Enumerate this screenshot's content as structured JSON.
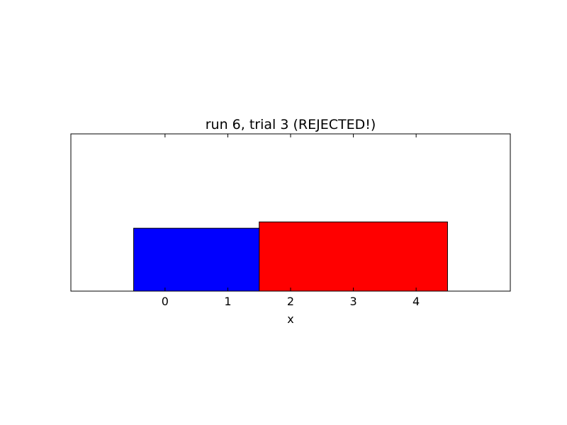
{
  "chart_data": {
    "type": "bar",
    "title": "run 6, trial 3 (REJECTED!)",
    "xlabel": "x",
    "ylabel": "",
    "xlim": [
      -1.5,
      5.5
    ],
    "ylim": [
      0,
      2.5
    ],
    "xticks": [
      0,
      1,
      2,
      3,
      4
    ],
    "grid": false,
    "bars": [
      {
        "x_left": -0.5,
        "x_right": 2.5,
        "height": 1.0,
        "color": "#0000ff"
      },
      {
        "x_left": 1.5,
        "x_right": 4.5,
        "height": 1.1,
        "color": "#ff0000"
      }
    ]
  }
}
